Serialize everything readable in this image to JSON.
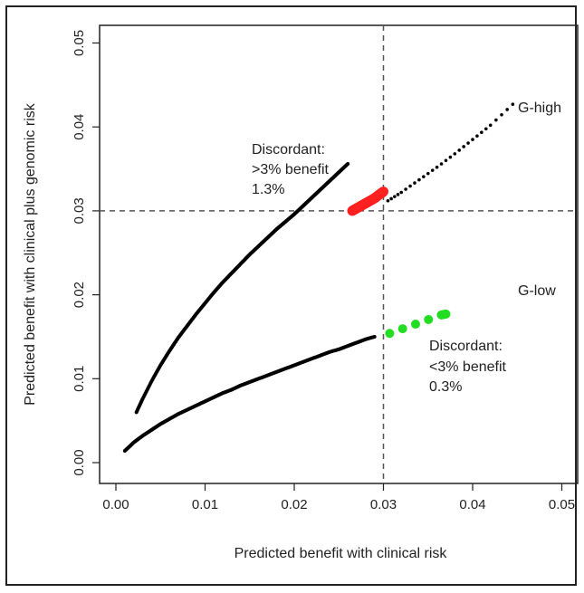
{
  "chart_data": {
    "type": "scatter",
    "title": "",
    "xlabel": "Predicted benefit with clinical risk",
    "ylabel": "Predicted benefit with clinical plus genomic risk",
    "xlim": [
      0.0,
      0.051
    ],
    "ylim": [
      0.0,
      0.051
    ],
    "x_ticks": [
      "0.00",
      "0.01",
      "0.02",
      "0.03",
      "0.04",
      "0.05"
    ],
    "y_ticks": [
      "0.00",
      "0.01",
      "0.02",
      "0.03",
      "0.04",
      "0.05"
    ],
    "threshold_lines": {
      "x": 0.03,
      "y": 0.03,
      "style": "dashed"
    },
    "colors": {
      "points": "#000000",
      "discordant_high": "#ff2020",
      "discordant_low": "#22dd22"
    },
    "series": [
      {
        "x": [
          0.0023,
          0.003,
          0.004,
          0.005,
          0.006,
          0.007,
          0.008,
          0.009,
          0.01,
          0.011,
          0.012,
          0.013,
          0.014,
          0.015,
          0.016,
          0.017,
          0.018,
          0.019,
          0.02,
          0.021,
          0.022,
          0.023,
          0.024,
          0.025,
          0.026
        ],
        "y": [
          0.006,
          0.0076,
          0.0097,
          0.0116,
          0.0133,
          0.0149,
          0.0163,
          0.0177,
          0.019,
          0.0203,
          0.0215,
          0.0226,
          0.0237,
          0.0248,
          0.0258,
          0.0268,
          0.0278,
          0.0287,
          0.0296,
          0.0306,
          0.0316,
          0.0326,
          0.0336,
          0.0346,
          0.0356
        ]
      },
      {
        "x": [
          0.0305,
          0.032,
          0.034,
          0.036,
          0.038,
          0.04,
          0.042,
          0.0445
        ],
        "y": [
          0.0312,
          0.0322,
          0.0337,
          0.0352,
          0.0368,
          0.0385,
          0.0402,
          0.0427
        ]
      },
      {
        "x": [
          0.001,
          0.002,
          0.003,
          0.004,
          0.005,
          0.006,
          0.007,
          0.008,
          0.009,
          0.01,
          0.011,
          0.012,
          0.013,
          0.014,
          0.015,
          0.016,
          0.017,
          0.018,
          0.019,
          0.02,
          0.021,
          0.022,
          0.023,
          0.024,
          0.025,
          0.026,
          0.027,
          0.028,
          0.029
        ],
        "y": [
          0.0014,
          0.0024,
          0.0032,
          0.0039,
          0.0046,
          0.0052,
          0.0058,
          0.0063,
          0.0068,
          0.0073,
          0.0078,
          0.0083,
          0.0087,
          0.0092,
          0.0096,
          0.01,
          0.0104,
          0.0108,
          0.0112,
          0.0116,
          0.012,
          0.0124,
          0.0128,
          0.0132,
          0.0135,
          0.0139,
          0.0143,
          0.0147,
          0.015
        ]
      },
      {
        "x": [
          0.0265,
          0.027,
          0.0275,
          0.028,
          0.0285,
          0.029,
          0.0295,
          0.03
        ],
        "y": [
          0.03,
          0.0303,
          0.0306,
          0.0309,
          0.0312,
          0.0315,
          0.0319,
          0.0323
        ]
      },
      {
        "x": [
          0.0307,
          0.0365,
          0.037
        ],
        "y": [
          0.0154,
          0.0176,
          0.0177
        ]
      }
    ],
    "annotations": {
      "high_label": "G-high",
      "low_label": "G-low",
      "high_discordant": [
        "Discordant:",
        ">3% benefit",
        "1.3%"
      ],
      "low_discordant": [
        "Discordant:",
        "<3% benefit",
        "0.3%"
      ]
    }
  }
}
